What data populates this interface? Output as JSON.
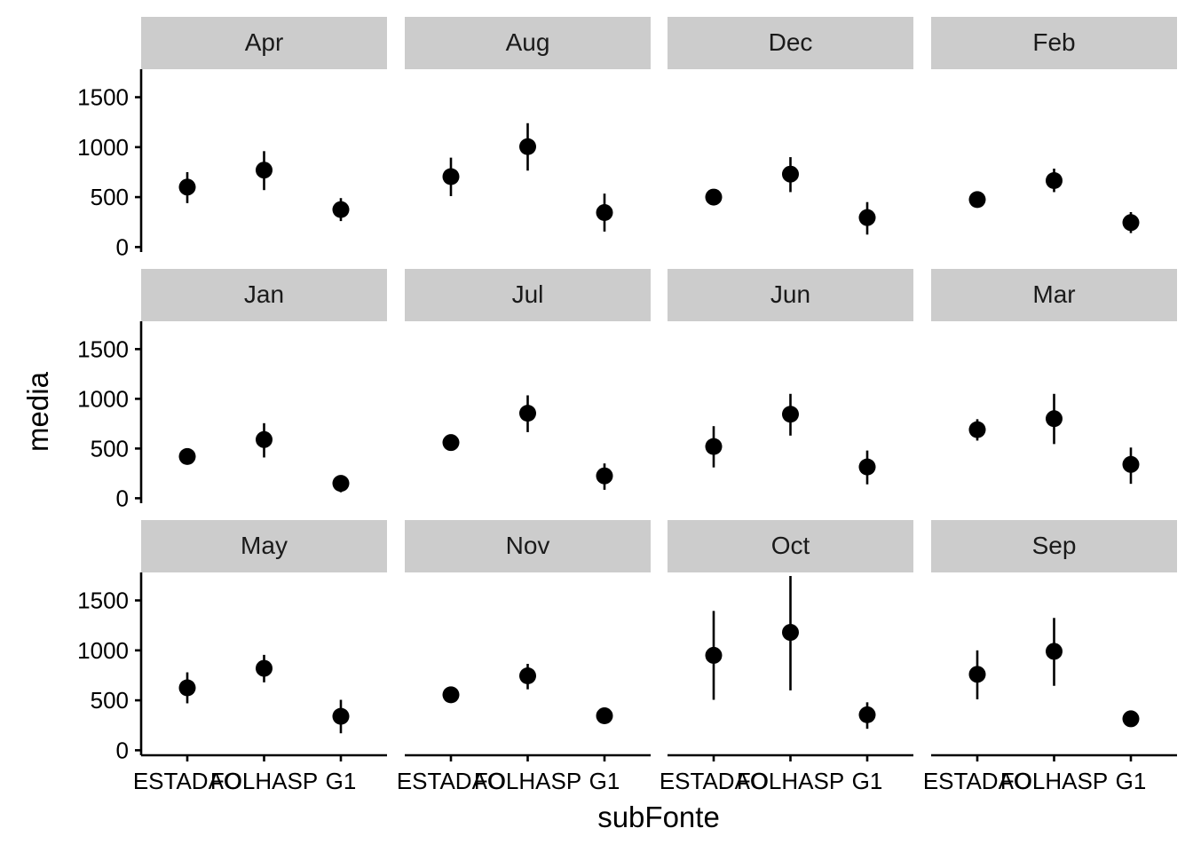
{
  "chart_data": {
    "type": "scatter",
    "xlabel": "subFonte",
    "ylabel": "media",
    "categories": [
      "ESTADAO",
      "FOLHASP",
      "G1"
    ],
    "y_ticks": [
      0,
      500,
      1000,
      1500
    ],
    "y_tick_labels": [
      "0",
      "500",
      "1000",
      "1500"
    ],
    "ylim": [
      -50,
      1780
    ],
    "grid": false,
    "layout": "facet_wrap 3 rows x 4 columns",
    "panels": [
      {
        "label": "Apr",
        "mean": [
          600,
          770,
          375
        ],
        "low": [
          440,
          570,
          260
        ],
        "high": [
          750,
          960,
          490
        ]
      },
      {
        "label": "Aug",
        "mean": [
          705,
          1005,
          345
        ],
        "low": [
          510,
          765,
          155
        ],
        "high": [
          895,
          1240,
          535
        ]
      },
      {
        "label": "Dec",
        "mean": [
          500,
          730,
          295
        ],
        "low": [
          500,
          550,
          125
        ],
        "high": [
          500,
          900,
          450
        ]
      },
      {
        "label": "Feb",
        "mean": [
          475,
          665,
          245
        ],
        "low": [
          475,
          550,
          140
        ],
        "high": [
          475,
          785,
          350
        ]
      },
      {
        "label": "Jan",
        "mean": [
          420,
          590,
          150
        ],
        "low": [
          420,
          410,
          60
        ],
        "high": [
          420,
          755,
          225
        ]
      },
      {
        "label": "Jul",
        "mean": [
          560,
          855,
          225
        ],
        "low": [
          480,
          665,
          85
        ],
        "high": [
          635,
          1035,
          350
        ]
      },
      {
        "label": "Jun",
        "mean": [
          520,
          845,
          315
        ],
        "low": [
          310,
          630,
          140
        ],
        "high": [
          725,
          1050,
          480
        ]
      },
      {
        "label": "Mar",
        "mean": [
          690,
          800,
          340
        ],
        "low": [
          580,
          545,
          145
        ],
        "high": [
          795,
          1050,
          510
        ]
      },
      {
        "label": "May",
        "mean": [
          625,
          820,
          340
        ],
        "low": [
          470,
          680,
          170
        ],
        "high": [
          780,
          955,
          505
        ]
      },
      {
        "label": "Nov",
        "mean": [
          555,
          745,
          345
        ],
        "low": [
          555,
          610,
          345
        ],
        "high": [
          555,
          865,
          345
        ]
      },
      {
        "label": "Oct",
        "mean": [
          950,
          1180,
          355
        ],
        "low": [
          505,
          600,
          215
        ],
        "high": [
          1395,
          1745,
          480
        ]
      },
      {
        "label": "Sep",
        "mean": [
          760,
          990,
          315
        ],
        "low": [
          510,
          645,
          315
        ],
        "high": [
          1000,
          1325,
          315
        ]
      }
    ]
  }
}
